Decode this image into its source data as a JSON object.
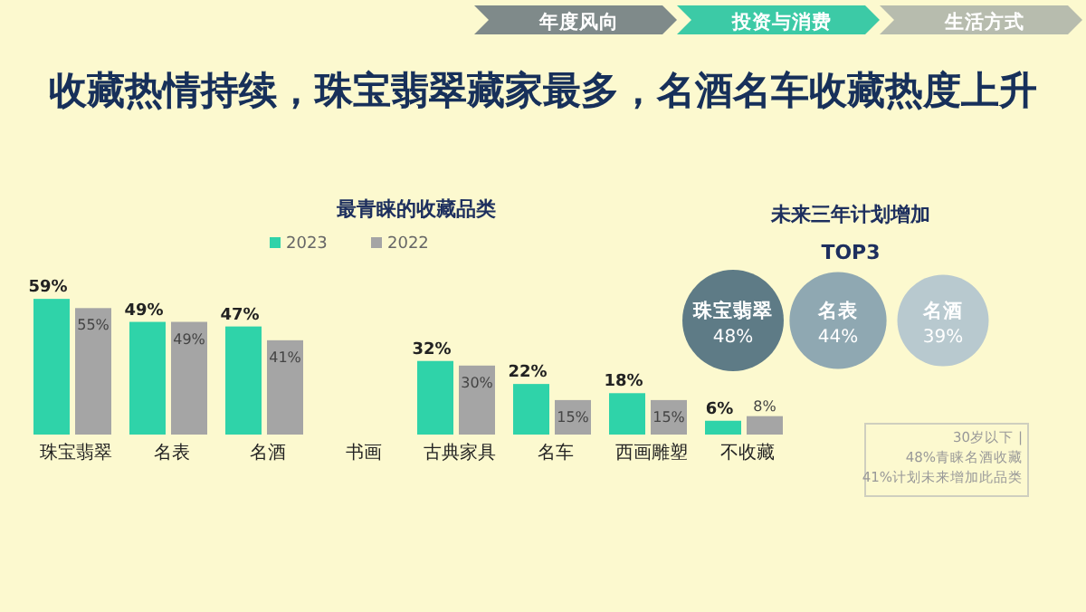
{
  "chart_data": [
    {
      "type": "other",
      "title": "收藏热情持续，珠宝翡翠藏家最多，名酒名车收藏热度上升",
      "annotations": [
        "年度风向",
        "投资与消费",
        "生活方式"
      ],
      "colors": [
        "#7f8a8a",
        "#3ccaa6",
        "#b7bcae"
      ]
    },
    {
      "type": "bar",
      "title": "最青睐的收藏品类",
      "legend": "top",
      "categories": [
        "珠宝翡翠",
        "名表",
        "名酒",
        "书画",
        "古典家具",
        "名车",
        "西画雕塑",
        "不收藏"
      ],
      "series": [
        {
          "name": "2023",
          "color": "#2fd3a9",
          "values": [
            59,
            49,
            47,
            null,
            32,
            22,
            18,
            6
          ],
          "value_labels": [
            "59%",
            "49%",
            "47%",
            null,
            "32%",
            "22%",
            "18%",
            "6%"
          ]
        },
        {
          "name": "2022",
          "color": "#a5a5a5",
          "values": [
            55,
            49,
            41,
            null,
            30,
            15,
            15,
            8
          ],
          "value_labels": [
            "55%",
            "49%",
            "41%",
            null,
            "30%",
            "15%",
            "15%",
            "8%"
          ]
        }
      ]
    },
    {
      "type": "other",
      "title": "未来三年计划增加",
      "subtitle": "TOP3",
      "categories": [
        "珠宝翡翠",
        "名表",
        "名酒"
      ],
      "values": [
        48,
        44,
        39
      ],
      "value_labels": [
        "48%",
        "44%",
        "39%"
      ],
      "colors": [
        "#5e7b86",
        "#8fa8b2",
        "#b8c9cf"
      ],
      "annotations": [
        "30岁以下 |",
        "48%青睐名酒收藏",
        "41%计划未来增加此品类"
      ]
    }
  ]
}
